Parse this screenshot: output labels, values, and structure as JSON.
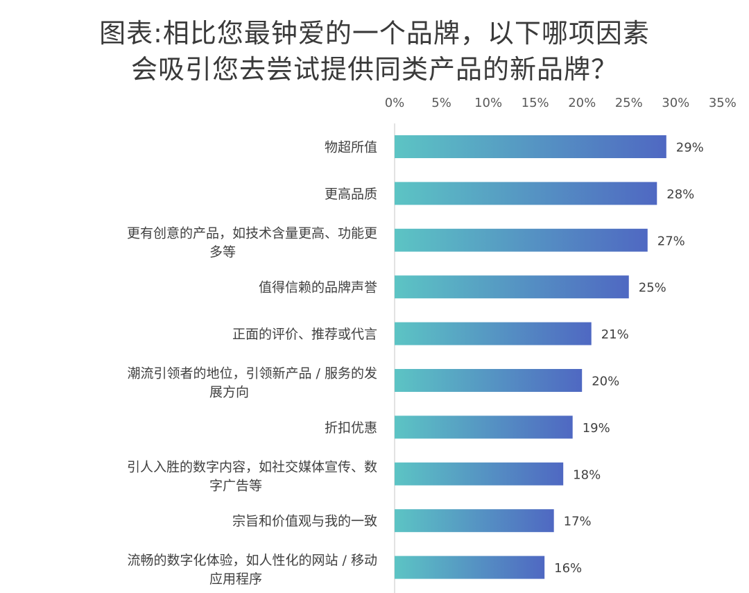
{
  "title_lines": [
    "图表:相比您最钟爱的一个品牌，以下哪项因素",
    "会吸引您去尝试提供同类产品的新品牌？"
  ],
  "chart_data": {
    "type": "bar",
    "orientation": "horizontal",
    "title": "图表:相比您最钟爱的一个品牌，以下哪项因素会吸引您去尝试提供同类产品的新品牌？",
    "xlim": [
      0,
      35
    ],
    "x_ticks": [
      "0%",
      "5%",
      "10%",
      "15%",
      "20%",
      "25%",
      "30%",
      "35%"
    ],
    "x_tick_values": [
      0,
      5,
      10,
      15,
      20,
      25,
      30,
      35
    ],
    "axis_position": "top",
    "grid": false,
    "legend": "none",
    "categories": [
      [
        "物超所值"
      ],
      [
        "更高品质"
      ],
      [
        "更有创意的产品，如技术含量更高、功能更",
        "多等"
      ],
      [
        "值得信赖的品牌声誉"
      ],
      [
        "正面的评价、推荐或代言"
      ],
      [
        "潮流引领者的地位，引领新产品 / 服务的发",
        "展方向"
      ],
      [
        "折扣优惠"
      ],
      [
        "引人入胜的数字内容，如社交媒体宣传、数",
        "字广告等"
      ],
      [
        "宗旨和价值观与我的一致"
      ],
      [
        "流畅的数字化体验，如人性化的网站 / 移动",
        "应用程序"
      ]
    ],
    "values": [
      29,
      28,
      27,
      25,
      21,
      20,
      19,
      18,
      17,
      16
    ],
    "value_labels": [
      "29%",
      "28%",
      "27%",
      "25%",
      "21%",
      "20%",
      "19%",
      "18%",
      "17%",
      "16%"
    ],
    "colors": {
      "bar_start": "#5cc4c4",
      "bar_end": "#4f68c2",
      "axis": "#d9d9d9"
    }
  }
}
